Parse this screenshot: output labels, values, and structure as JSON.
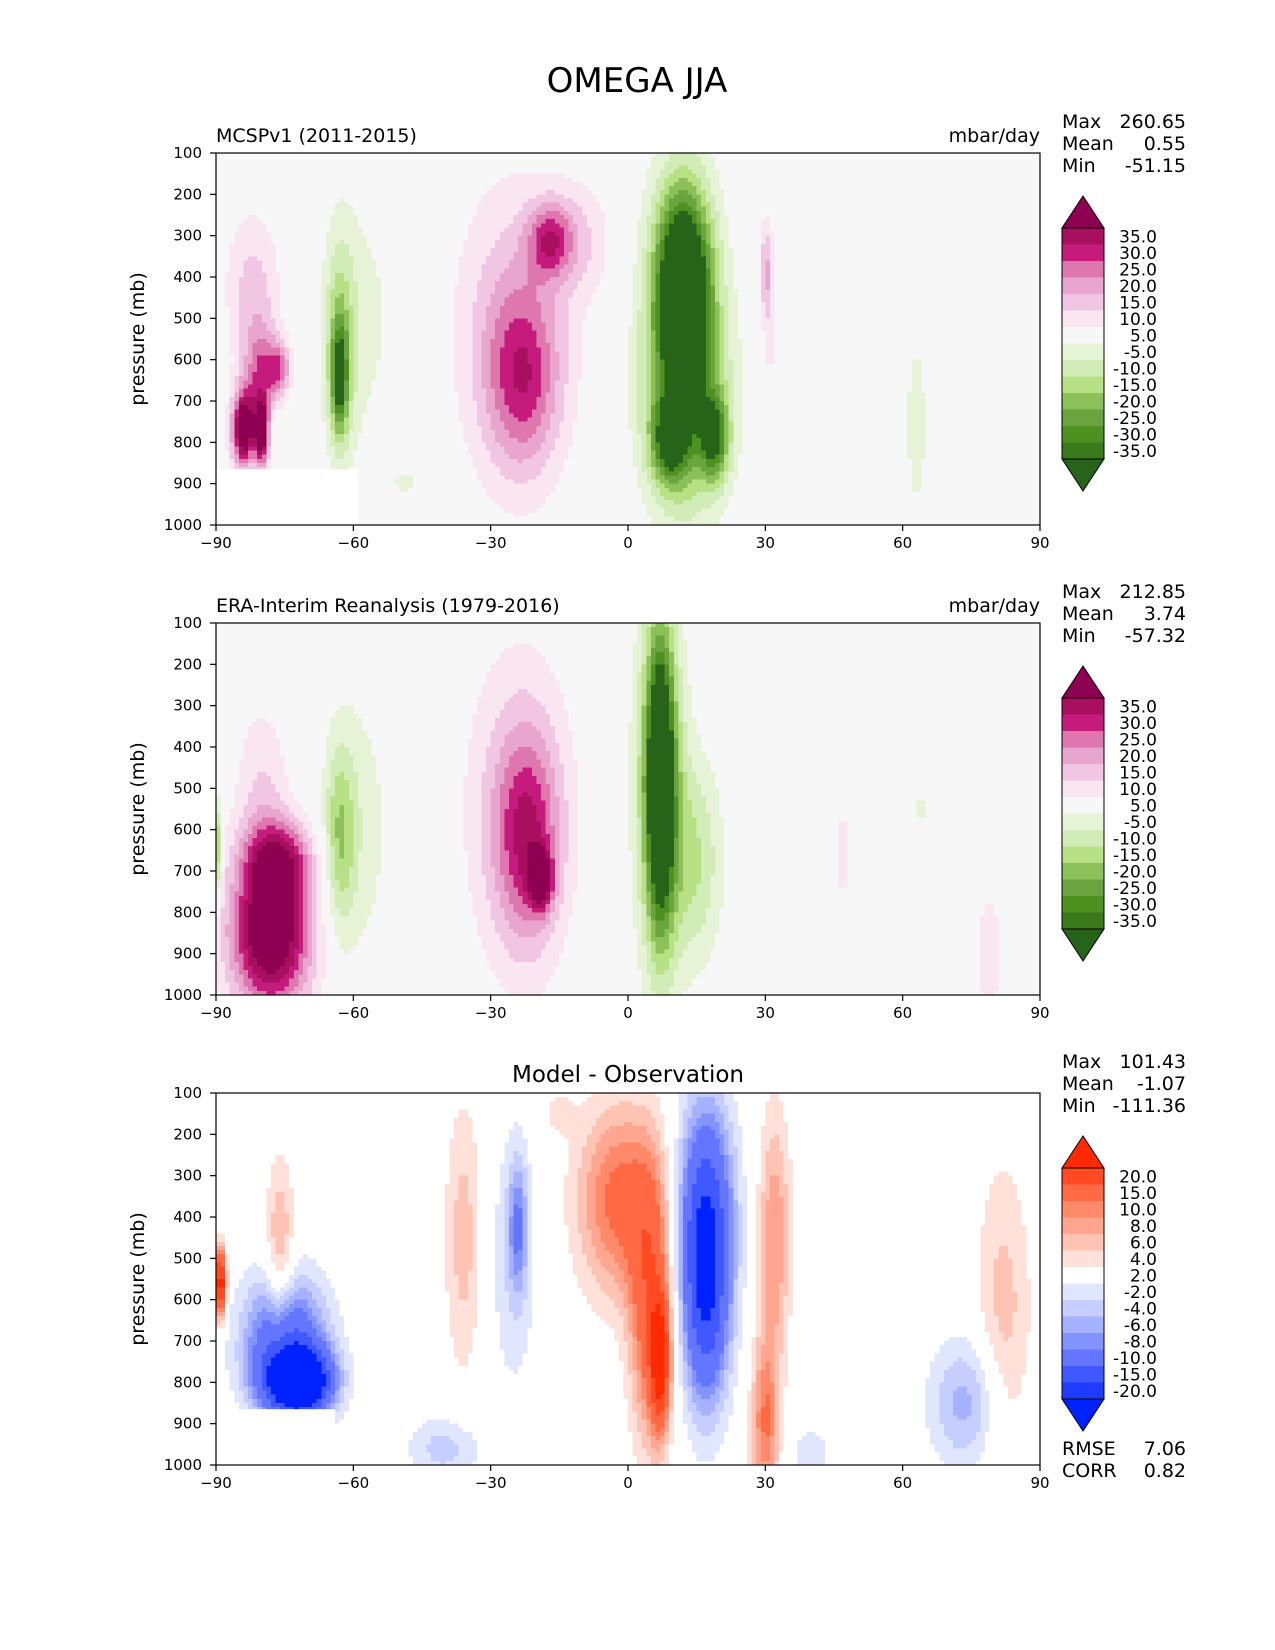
{
  "title": "OMEGA JJA",
  "chart_data": [
    {
      "type": "heatmap",
      "id": "model",
      "left_title": "MCSPv1 (2011-2015)",
      "center_title": "",
      "units": "mbar/day",
      "ylabel": "pressure (mb)",
      "xlabel": "",
      "x_ticks": [
        "−90",
        "−60",
        "−30",
        "0",
        "30",
        "60",
        "90"
      ],
      "y_ticks": [
        "100",
        "200",
        "300",
        "400",
        "500",
        "600",
        "700",
        "800",
        "900",
        "1000"
      ],
      "xlim": [
        -90,
        90
      ],
      "ylim": [
        1000,
        100
      ],
      "stats": [
        {
          "label": "Max",
          "value": "260.65"
        },
        {
          "label": "Mean",
          "value": "0.55"
        },
        {
          "label": "Min",
          "value": "-51.15"
        }
      ],
      "colorbar": {
        "labels": [
          "35.0",
          "30.0",
          "25.0",
          "20.0",
          "15.0",
          "10.0",
          "5.0",
          "-5.0",
          "-10.0",
          "-15.0",
          "-20.0",
          "-25.0",
          "-30.0",
          "-35.0"
        ],
        "colors": [
          "#8e0152",
          "#a8105f",
          "#c51b7d",
          "#de77ae",
          "#e8a6ce",
          "#f1c6e3",
          "#f9e6f1",
          "#f7f7f7",
          "#e6f3d6",
          "#d2ecb7",
          "#b8e186",
          "#8cc15a",
          "#6ba33f",
          "#4d9221",
          "#3a7a1b",
          "#276419"
        ]
      },
      "blobs": [
        {
          "lat": -82,
          "p": 430,
          "rx": 6,
          "rp": 190,
          "v": 12
        },
        {
          "lat": -80,
          "p": 640,
          "rx": 4,
          "rp": 120,
          "v": 22
        },
        {
          "lat": -84,
          "p": 770,
          "rx": 2.5,
          "rp": 90,
          "v": 45
        },
        {
          "lat": -80,
          "p": 780,
          "rx": 1.5,
          "rp": 80,
          "v": 40
        },
        {
          "lat": -76,
          "p": 620,
          "rx": 2.5,
          "rp": 60,
          "v": 18
        },
        {
          "lat": -77,
          "p": 760,
          "rx": 1.5,
          "rp": 50,
          "v": -5
        },
        {
          "lat": -63,
          "p": 560,
          "rx": 3.5,
          "rp": 260,
          "v": -18
        },
        {
          "lat": -63,
          "p": 650,
          "rx": 1.8,
          "rp": 130,
          "v": -26
        },
        {
          "lat": -57,
          "p": 500,
          "rx": 8,
          "rp": 360,
          "v": -6
        },
        {
          "lat": -48,
          "p": 900,
          "rx": 6,
          "rp": 80,
          "v": -5
        },
        {
          "lat": -25,
          "p": 520,
          "rx": 13,
          "rp": 370,
          "v": 13
        },
        {
          "lat": -23,
          "p": 650,
          "rx": 8,
          "rp": 220,
          "v": 20
        },
        {
          "lat": -17,
          "p": 310,
          "rx": 5,
          "rp": 90,
          "v": 22
        },
        {
          "lat": -10,
          "p": 310,
          "rx": 7,
          "rp": 140,
          "v": 8
        },
        {
          "lat": 12,
          "p": 400,
          "rx": 6,
          "rp": 220,
          "v": -38
        },
        {
          "lat": 12,
          "p": 550,
          "rx": 8,
          "rp": 380,
          "v": -22
        },
        {
          "lat": 13,
          "p": 700,
          "rx": 10,
          "rp": 250,
          "v": -15
        },
        {
          "lat": 9,
          "p": 800,
          "rx": 4,
          "rp": 100,
          "v": -25
        },
        {
          "lat": 19,
          "p": 790,
          "rx": 3,
          "rp": 100,
          "v": -28
        },
        {
          "lat": 31,
          "p": 480,
          "rx": 2,
          "rp": 230,
          "v": 8
        },
        {
          "lat": 30,
          "p": 380,
          "rx": 1.2,
          "rp": 110,
          "v": 12
        },
        {
          "lat": 63,
          "p": 760,
          "rx": 3,
          "rp": 280,
          "v": -7
        },
        {
          "lat": 45,
          "p": 760,
          "rx": 1,
          "rp": 60,
          "v": 6
        }
      ],
      "mask": [
        {
          "lat0": -90,
          "lat1": -59,
          "p0": 865,
          "p1": 1000
        }
      ]
    },
    {
      "type": "heatmap",
      "id": "obs",
      "left_title": "ERA-Interim Reanalysis (1979-2016)",
      "center_title": "",
      "units": "mbar/day",
      "ylabel": "pressure (mb)",
      "xlabel": "",
      "x_ticks": [
        "−90",
        "−60",
        "−30",
        "0",
        "30",
        "60",
        "90"
      ],
      "y_ticks": [
        "100",
        "200",
        "300",
        "400",
        "500",
        "600",
        "700",
        "800",
        "900",
        "1000"
      ],
      "xlim": [
        -90,
        90
      ],
      "ylim": [
        1000,
        100
      ],
      "stats": [
        {
          "label": "Max",
          "value": "212.85"
        },
        {
          "label": "Mean",
          "value": "3.74"
        },
        {
          "label": "Min",
          "value": "-57.32"
        }
      ],
      "colorbar": {
        "labels": [
          "35.0",
          "30.0",
          "25.0",
          "20.0",
          "15.0",
          "10.0",
          "5.0",
          "-5.0",
          "-10.0",
          "-15.0",
          "-20.0",
          "-25.0",
          "-30.0",
          "-35.0"
        ],
        "colors": [
          "#8e0152",
          "#a8105f",
          "#c51b7d",
          "#de77ae",
          "#e8a6ce",
          "#f1c6e3",
          "#f9e6f1",
          "#f7f7f7",
          "#e6f3d6",
          "#d2ecb7",
          "#b8e186",
          "#8cc15a",
          "#6ba33f",
          "#4d9221",
          "#3a7a1b",
          "#276419"
        ]
      },
      "blobs": [
        {
          "lat": -80,
          "p": 520,
          "rx": 6,
          "rp": 230,
          "v": 10
        },
        {
          "lat": -78,
          "p": 850,
          "rx": 9,
          "rp": 190,
          "v": 45
        },
        {
          "lat": -76,
          "p": 670,
          "rx": 7,
          "rp": 90,
          "v": 22
        },
        {
          "lat": -63,
          "p": 620,
          "rx": 3.5,
          "rp": 230,
          "v": -18
        },
        {
          "lat": -58,
          "p": 600,
          "rx": 7,
          "rp": 380,
          "v": -7
        },
        {
          "lat": -24,
          "p": 550,
          "rx": 12,
          "rp": 400,
          "v": 12
        },
        {
          "lat": -22,
          "p": 620,
          "rx": 7,
          "rp": 250,
          "v": 22
        },
        {
          "lat": -19,
          "p": 720,
          "rx": 2.5,
          "rp": 70,
          "v": 30
        },
        {
          "lat": 7,
          "p": 500,
          "rx": 5.5,
          "rp": 450,
          "v": -22
        },
        {
          "lat": 7,
          "p": 480,
          "rx": 3,
          "rp": 350,
          "v": -40
        },
        {
          "lat": 15,
          "p": 680,
          "rx": 6,
          "rp": 250,
          "v": -14
        },
        {
          "lat": 47,
          "p": 660,
          "rx": 1.5,
          "rp": 160,
          "v": 7
        },
        {
          "lat": 79,
          "p": 900,
          "rx": 3,
          "rp": 160,
          "v": 9
        },
        {
          "lat": 64,
          "p": 550,
          "rx": 1.5,
          "rp": 80,
          "v": -6
        },
        {
          "lat": -90,
          "p": 650,
          "rx": 1,
          "rp": 120,
          "v": -28
        }
      ],
      "mask": []
    },
    {
      "type": "heatmap",
      "id": "diff",
      "left_title": "",
      "center_title": "Model - Observation",
      "units": "",
      "ylabel": "pressure (mb)",
      "xlabel": "",
      "x_ticks": [
        "−90",
        "−60",
        "−30",
        "0",
        "30",
        "60",
        "90"
      ],
      "y_ticks": [
        "100",
        "200",
        "300",
        "400",
        "500",
        "600",
        "700",
        "800",
        "900",
        "1000"
      ],
      "xlim": [
        -90,
        90
      ],
      "ylim": [
        1000,
        100
      ],
      "stats": [
        {
          "label": "Max",
          "value": "101.43"
        },
        {
          "label": "Mean",
          "value": "-1.07"
        },
        {
          "label": "Min",
          "value": "-111.36"
        }
      ],
      "extra_stats": [
        {
          "label": "RMSE",
          "value": "7.06"
        },
        {
          "label": "CORR",
          "value": "0.82"
        }
      ],
      "colorbar": {
        "labels": [
          "20.0",
          "15.0",
          "10.0",
          "8.0",
          "6.0",
          "4.0",
          "2.0",
          "-2.0",
          "-4.0",
          "-6.0",
          "-8.0",
          "-10.0",
          "-15.0",
          "-20.0"
        ],
        "colors": [
          "#ff2a00",
          "#ff4a22",
          "#ff6a45",
          "#ff8a6a",
          "#ffa590",
          "#ffc3b4",
          "#ffe1d9",
          "#ffffff",
          "#e1e6ff",
          "#c6ceff",
          "#a6b2ff",
          "#8393ff",
          "#6475ff",
          "#4058ff",
          "#1f3bff",
          "#0022ff"
        ]
      },
      "blobs": [
        {
          "lat": -36,
          "p": 450,
          "rx": 4,
          "rp": 330,
          "v": 5
        },
        {
          "lat": -25,
          "p": 500,
          "rx": 5,
          "rp": 330,
          "v": -4
        },
        {
          "lat": -24,
          "p": 420,
          "rx": 2,
          "rp": 150,
          "v": -8
        },
        {
          "lat": -2,
          "p": 360,
          "rx": 9,
          "rp": 230,
          "v": 11
        },
        {
          "lat": 5,
          "p": 620,
          "rx": 4.5,
          "rp": 320,
          "v": 13
        },
        {
          "lat": 7,
          "p": 750,
          "rx": 2,
          "rp": 150,
          "v": 20
        },
        {
          "lat": 17,
          "p": 400,
          "rx": 6,
          "rp": 280,
          "v": -18
        },
        {
          "lat": 17,
          "p": 650,
          "rx": 5,
          "rp": 250,
          "v": -12
        },
        {
          "lat": 32,
          "p": 450,
          "rx": 3.5,
          "rp": 300,
          "v": 8
        },
        {
          "lat": 30,
          "p": 900,
          "rx": 3,
          "rp": 200,
          "v": 10
        },
        {
          "lat": 40,
          "p": 970,
          "rx": 5,
          "rp": 80,
          "v": -3
        },
        {
          "lat": 74,
          "p": 850,
          "rx": 8,
          "rp": 160,
          "v": -7
        },
        {
          "lat": 82,
          "p": 650,
          "rx": 6,
          "rp": 380,
          "v": 5
        },
        {
          "lat": -76,
          "p": 500,
          "rx": 3,
          "rp": 230,
          "v": 7
        },
        {
          "lat": -75,
          "p": 700,
          "rx": 9,
          "rp": 160,
          "v": -15
        },
        {
          "lat": -72,
          "p": 800,
          "rx": 7,
          "rp": 80,
          "v": -30
        },
        {
          "lat": -40,
          "p": 960,
          "rx": 8,
          "rp": 80,
          "v": -5
        },
        {
          "lat": -89,
          "p": 560,
          "rx": 1.2,
          "rp": 80,
          "v": 25
        },
        {
          "lat": -15,
          "p": 150,
          "rx": 3,
          "rp": 50,
          "v": 3
        }
      ],
      "mask": [
        {
          "lat0": -90,
          "lat1": -64,
          "p0": 865,
          "p1": 1000
        }
      ]
    }
  ]
}
